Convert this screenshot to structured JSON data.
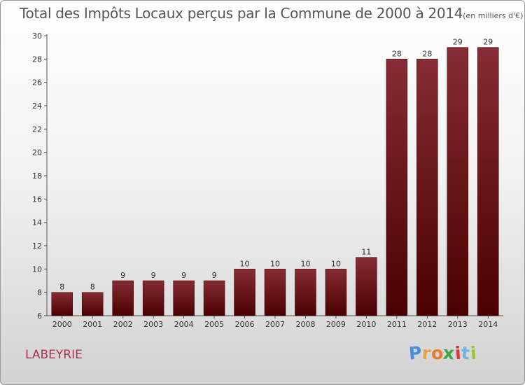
{
  "chart_data": {
    "type": "bar",
    "title": "Total des Impôts Locaux perçus par la Commune de 2000 à 2014",
    "unit": "(en milliers d'€)",
    "categories": [
      "2000",
      "2001",
      "2002",
      "2003",
      "2004",
      "2005",
      "2006",
      "2007",
      "2008",
      "2009",
      "2010",
      "2011",
      "2012",
      "2013",
      "2014"
    ],
    "values": [
      8,
      8,
      9,
      9,
      9,
      9,
      10,
      10,
      10,
      10,
      11,
      28,
      28,
      29,
      29
    ],
    "value_labels": [
      "8",
      "8",
      "9",
      "9",
      "9",
      "9",
      "10",
      "10",
      "10",
      "10",
      "11",
      "28",
      "28",
      "29",
      "29"
    ],
    "ylim": [
      6,
      30
    ],
    "yticks": [
      "6",
      "8",
      "10",
      "12",
      "14",
      "16",
      "18",
      "20",
      "22",
      "24",
      "26",
      "28",
      "30"
    ],
    "grid": false,
    "bar_color": "#7a1c22"
  },
  "commune": "LABEYRIE",
  "logo": {
    "letters": [
      "P",
      "r",
      "o",
      "x",
      "i",
      "t",
      "i"
    ],
    "colors": [
      "#4b8fd6",
      "#e8a23a",
      "#e87a2a",
      "#3aa845",
      "#d63a3a",
      "#6ab6e0",
      "#9ac43a"
    ]
  }
}
